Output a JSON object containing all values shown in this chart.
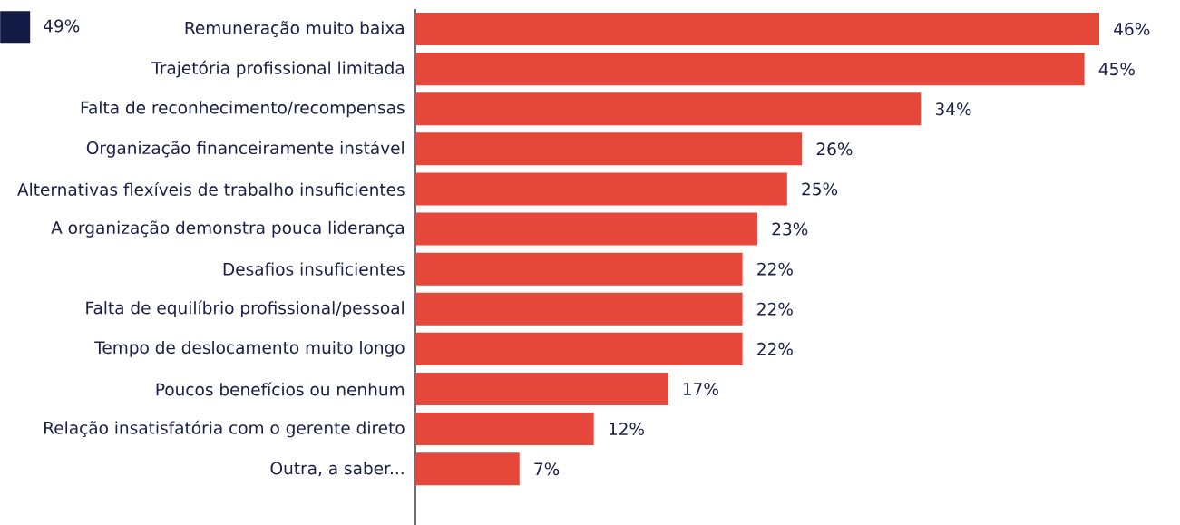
{
  "chart_data": {
    "type": "bar",
    "orientation": "horizontal",
    "categories": [
      "Remuneração muito baixa",
      "Trajetória profissional limitada",
      "Falta de reconhecimento/recompensas",
      "Organização financeiramente instável",
      "Alternativas flexíveis de trabalho insuficientes",
      "A organização demonstra pouca liderança",
      "Desafios insuficientes",
      "Falta de equilíbrio profissional/pessoal",
      "Tempo de deslocamento muito longo",
      "Poucos benefícios ou nenhum",
      "Relação insatisfatória com o gerente direto",
      "Outra, a saber..."
    ],
    "series": [
      {
        "color": "#e5473a",
        "values": [
          46,
          45,
          34,
          26,
          25,
          23,
          22,
          22,
          22,
          17,
          12,
          7
        ],
        "value_labels": [
          "46%",
          "45%",
          "34%",
          "26%",
          "25%",
          "23%",
          "22%",
          "22%",
          "22%",
          "17%",
          "12%",
          "7%"
        ]
      },
      {
        "name": "49%",
        "color": "#141a46",
        "values": [
          null,
          null,
          null,
          null,
          null,
          null,
          null,
          null,
          null,
          null,
          null,
          null
        ]
      }
    ],
    "legend": "top left"
  }
}
